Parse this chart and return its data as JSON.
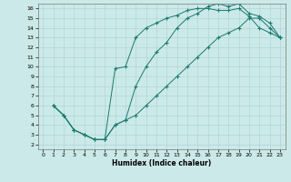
{
  "xlabel": "Humidex (Indice chaleur)",
  "bg_color": "#cce9e9",
  "line_color": "#1a7a6e",
  "xlim": [
    -0.5,
    23.5
  ],
  "ylim": [
    1.5,
    16.5
  ],
  "xticks": [
    0,
    1,
    2,
    3,
    4,
    5,
    6,
    7,
    8,
    9,
    10,
    11,
    12,
    13,
    14,
    15,
    16,
    17,
    18,
    19,
    20,
    21,
    22,
    23
  ],
  "yticks": [
    2,
    3,
    4,
    5,
    6,
    7,
    8,
    9,
    10,
    11,
    12,
    13,
    14,
    15,
    16
  ],
  "line1_x": [
    1,
    2,
    3,
    4,
    5,
    6,
    7,
    8,
    9,
    10,
    11,
    12,
    13,
    14,
    15,
    16,
    17,
    18,
    19,
    20,
    21,
    22,
    23
  ],
  "line1_y": [
    6,
    5,
    3.5,
    3,
    2.5,
    2.5,
    9.8,
    10,
    13,
    14,
    14.5,
    15,
    15.3,
    15.8,
    16,
    16,
    15.8,
    15.8,
    16,
    15.2,
    14,
    13.5,
    13
  ],
  "line2_x": [
    1,
    2,
    3,
    4,
    5,
    6,
    7,
    8,
    9,
    10,
    11,
    12,
    13,
    14,
    15,
    16,
    17,
    18,
    19,
    20,
    21,
    22,
    23
  ],
  "line2_y": [
    6,
    5,
    3.5,
    3,
    2.5,
    2.5,
    4,
    4.5,
    8,
    10,
    11.5,
    12.5,
    14,
    15,
    15.5,
    16.2,
    16.5,
    16.2,
    16.5,
    15.5,
    15.2,
    14.5,
    13
  ],
  "line3_x": [
    1,
    2,
    3,
    4,
    5,
    6,
    7,
    8,
    9,
    10,
    11,
    12,
    13,
    14,
    15,
    16,
    17,
    18,
    19,
    20,
    21,
    22,
    23
  ],
  "line3_y": [
    6,
    5,
    3.5,
    3,
    2.5,
    2.5,
    4,
    4.5,
    5,
    6,
    7,
    8,
    9,
    10,
    11,
    12,
    13,
    13.5,
    14,
    15,
    15,
    14,
    13
  ]
}
